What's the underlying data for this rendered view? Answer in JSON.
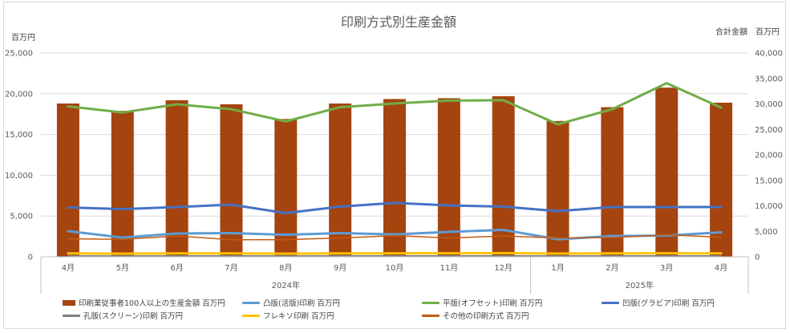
{
  "chart_data": {
    "type": "bar",
    "title": "印刷方式別生産金額",
    "left_axis_unit": "百万円",
    "right_axis_unit": "合計金額　百万円",
    "categories": [
      "4月",
      "5月",
      "6月",
      "7月",
      "8月",
      "9月",
      "10月",
      "11月",
      "12月",
      "1月",
      "2月",
      "3月",
      "4月"
    ],
    "year_groups": [
      {
        "label": "2024年",
        "span": 9
      },
      {
        "label": "2025年",
        "span": 4
      }
    ],
    "ylim_left": [
      0,
      25000
    ],
    "yticks_left": [
      "0",
      "5,000",
      "10,000",
      "15,000",
      "20,000",
      "25,000"
    ],
    "ylim_right": [
      0,
      40000
    ],
    "yticks_right": [
      "0",
      "5,000",
      "10,000",
      "15,000",
      "20,000",
      "25,000",
      "30,000",
      "35,000",
      "40,000"
    ],
    "grid": true,
    "legend_position": "bottom",
    "series": [
      {
        "name": "印刷業従事者100人以上の生産金額 百万円",
        "kind": "bar",
        "axis": "left",
        "color": "#a5440f",
        "values": [
          18800,
          17900,
          19200,
          18700,
          16900,
          18800,
          19350,
          19450,
          19700,
          16650,
          18350,
          20750,
          18900
        ]
      },
      {
        "name": "凸版(活版)印刷 百万円",
        "kind": "line",
        "axis": "left",
        "color": "#5b9bd5",
        "width": 3,
        "values": [
          3150,
          2350,
          2850,
          2900,
          2700,
          2900,
          2750,
          3050,
          3300,
          2150,
          2550,
          2600,
          3000
        ]
      },
      {
        "name": "平版(オフセット)印刷 百万円",
        "kind": "line",
        "axis": "left",
        "color": "#70ad47",
        "width": 3,
        "values": [
          18450,
          17700,
          18700,
          18100,
          16600,
          18350,
          18800,
          19150,
          19200,
          16250,
          18100,
          21300,
          18300
        ]
      },
      {
        "name": "凹版(グラビア)印刷 百万円",
        "kind": "line",
        "axis": "left",
        "color": "#4472c4",
        "width": 3,
        "values": [
          6050,
          5850,
          6100,
          6400,
          5350,
          6150,
          6600,
          6300,
          6150,
          5600,
          6100,
          6100,
          6100
        ]
      },
      {
        "name": "孔版(スクリーン)印刷 百万円",
        "kind": "line",
        "axis": "left",
        "color": "#7f7f7f",
        "width": 1.5,
        "values": [
          120,
          110,
          120,
          120,
          110,
          120,
          120,
          120,
          120,
          110,
          120,
          130,
          120
        ]
      },
      {
        "name": "フレキソ印刷 百万円",
        "kind": "line",
        "axis": "left",
        "color": "#ffc000",
        "width": 3,
        "values": [
          420,
          380,
          410,
          420,
          380,
          410,
          420,
          430,
          440,
          390,
          410,
          430,
          410
        ]
      },
      {
        "name": "その他の印刷方式 百万円",
        "kind": "line",
        "axis": "left",
        "color": "#c55a11",
        "width": 1.5,
        "values": [
          2200,
          2150,
          2550,
          2100,
          2100,
          2300,
          2600,
          2300,
          2550,
          2300,
          2350,
          2700,
          2400
        ]
      }
    ]
  }
}
